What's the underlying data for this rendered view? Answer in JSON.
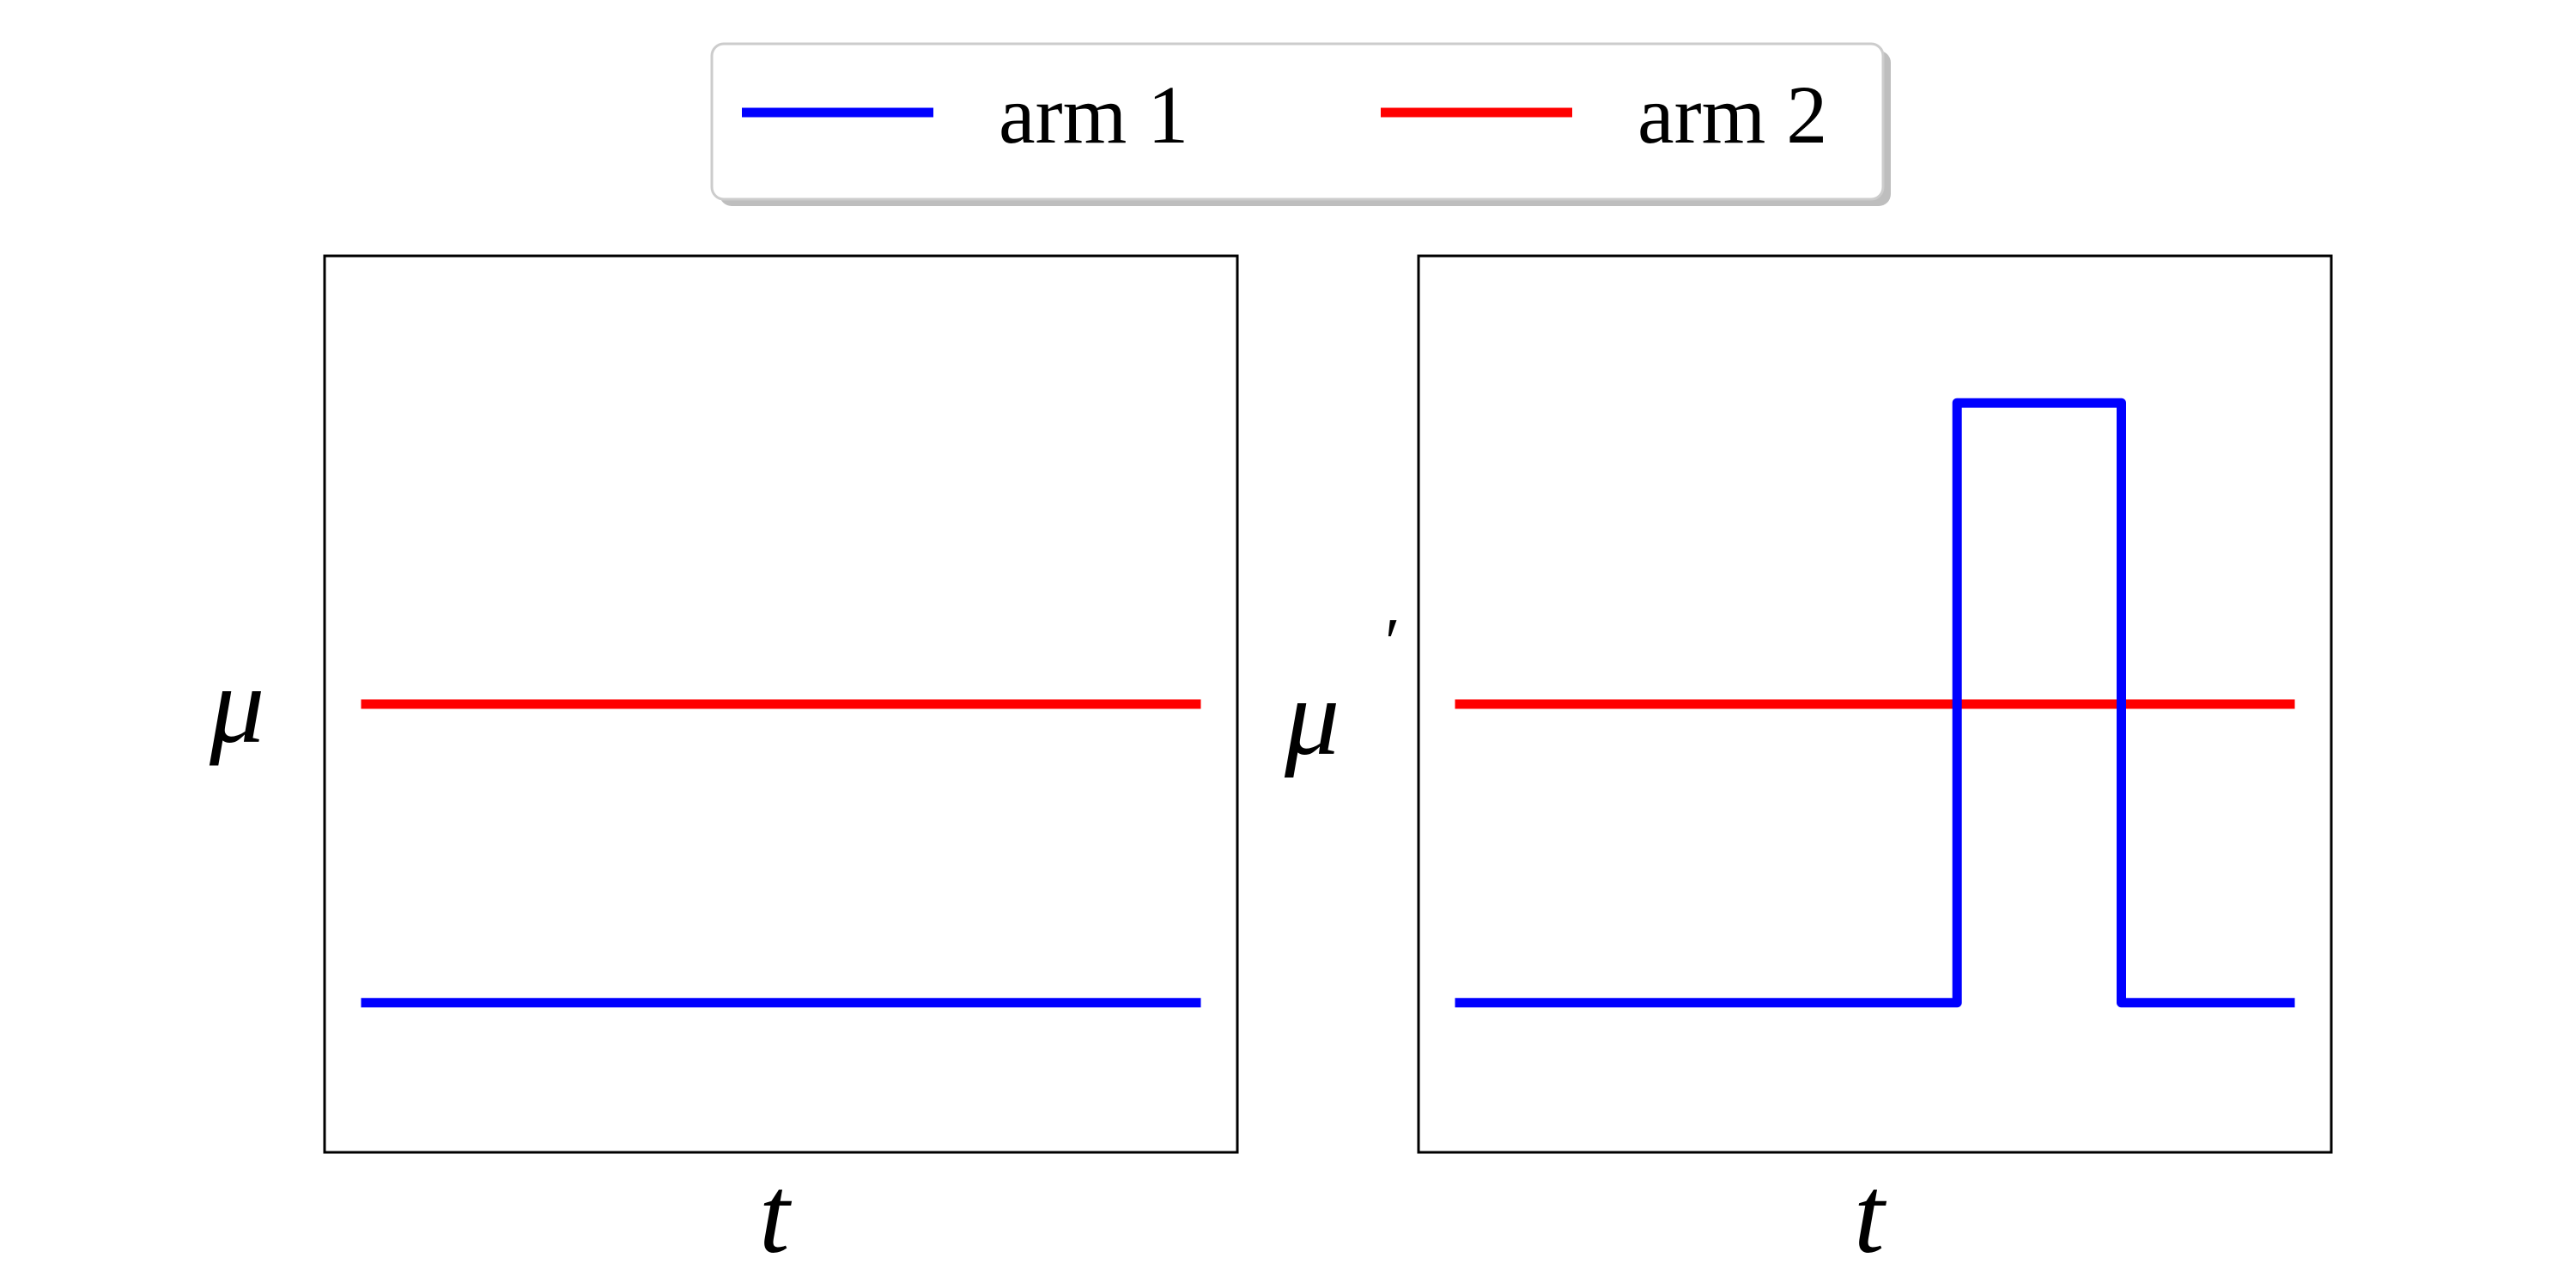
{
  "chart_data": [
    {
      "type": "line",
      "panel": "left",
      "xlabel": "t",
      "ylabel": "μ",
      "ylabel_prime": "",
      "xlim": [
        0,
        1
      ],
      "ylim": [
        0,
        1
      ],
      "grid": false,
      "ticks": false,
      "series": [
        {
          "name": "arm 1",
          "color": "#0000ff",
          "step": false,
          "x": [
            0.04,
            0.96
          ],
          "y": [
            0.167,
            0.167
          ]
        },
        {
          "name": "arm 2",
          "color": "#ff0000",
          "step": false,
          "x": [
            0.04,
            0.96
          ],
          "y": [
            0.5,
            0.5
          ]
        }
      ]
    },
    {
      "type": "line",
      "panel": "right",
      "xlabel": "t",
      "ylabel": "μ",
      "ylabel_prime": "′",
      "xlim": [
        0,
        1
      ],
      "ylim": [
        0,
        1
      ],
      "grid": false,
      "ticks": false,
      "series": [
        {
          "name": "arm 1",
          "color": "#0000ff",
          "step": true,
          "x": [
            0.04,
            0.59,
            0.59,
            0.77,
            0.77,
            0.96
          ],
          "y": [
            0.167,
            0.167,
            0.836,
            0.836,
            0.167,
            0.167
          ]
        },
        {
          "name": "arm 2",
          "color": "#ff0000",
          "step": false,
          "x": [
            0.04,
            0.96
          ],
          "y": [
            0.5,
            0.5
          ]
        }
      ]
    }
  ],
  "legend": {
    "placement": "top-center",
    "entries": [
      {
        "label": "arm 1",
        "color": "#0000ff"
      },
      {
        "label": "arm 2",
        "color": "#ff0000"
      }
    ]
  }
}
